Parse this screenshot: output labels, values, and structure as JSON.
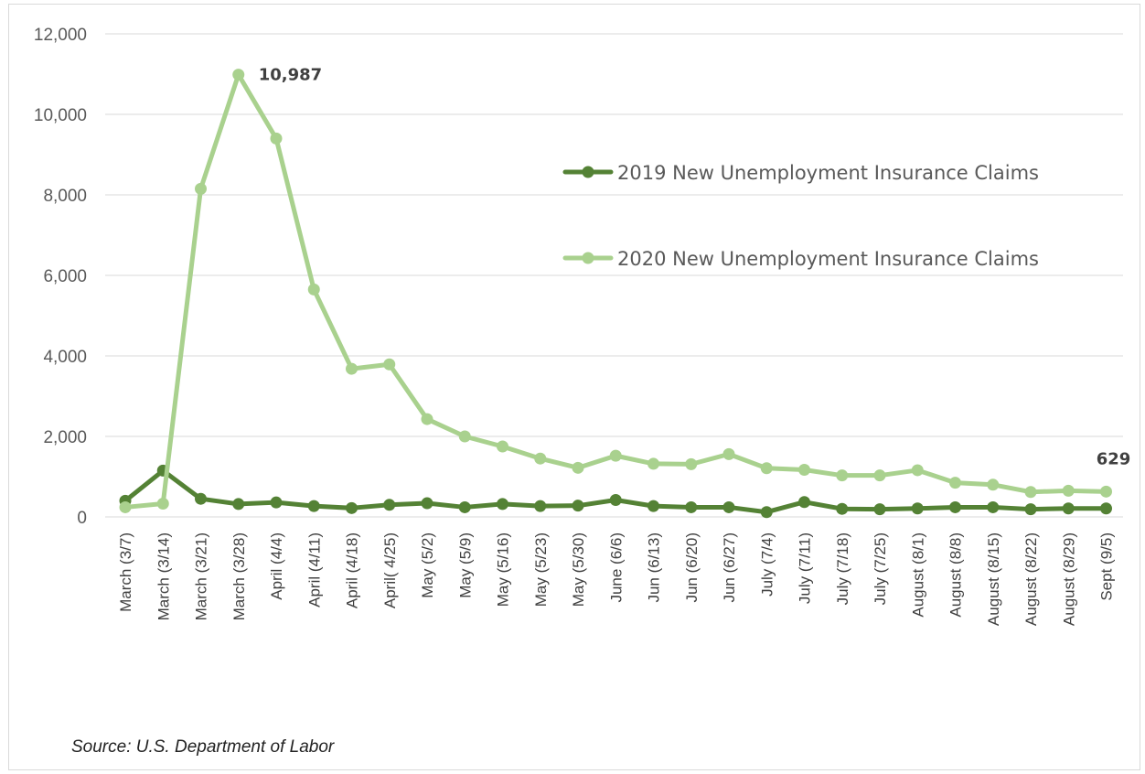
{
  "chart_data": {
    "type": "line",
    "categories": [
      "March  (3/7)",
      "March (3/14)",
      "March (3/21)",
      "March (3/28)",
      "April (4/4)",
      "April (4/11)",
      "April (4/18)",
      "April( 4/25)",
      "May (5/2)",
      "May (5/9)",
      "May (5/16)",
      "May (5/23)",
      "May (5/30)",
      "June (6/6)",
      "Jun (6/13)",
      "Jun (6/20)",
      "Jun (6/27)",
      "July (7/4)",
      "July (7/11)",
      "July (7/18)",
      "July (7/25)",
      "August (8/1)",
      "August (8/8)",
      "August (8/15)",
      "August (8/22)",
      "August (8/29)",
      "Sept (9/5)"
    ],
    "series": [
      {
        "name": "2019 New Unemployment Insurance Claims",
        "color": "#548235",
        "values": [
          400,
          1150,
          450,
          320,
          360,
          270,
          220,
          300,
          340,
          240,
          320,
          270,
          280,
          420,
          270,
          240,
          240,
          120,
          370,
          200,
          190,
          210,
          240,
          240,
          190,
          210,
          210
        ]
      },
      {
        "name": "2020 New Unemployment Insurance Claims",
        "color": "#a9d18e",
        "values": [
          240,
          330,
          8150,
          10987,
          9400,
          5650,
          3680,
          3790,
          2430,
          2000,
          1750,
          1450,
          1220,
          1520,
          1320,
          1310,
          1560,
          1210,
          1170,
          1030,
          1030,
          1160,
          850,
          800,
          620,
          650,
          629
        ]
      }
    ],
    "yticks": [
      "0",
      "2,000",
      "4,000",
      "6,000",
      "8,000",
      "10,000",
      "12,000"
    ],
    "ylim": [
      0,
      12000
    ],
    "grid": true,
    "legend_position": "right",
    "annotations": [
      {
        "series": 1,
        "index": 3,
        "text": "10,987"
      },
      {
        "series": 1,
        "index": 26,
        "text": "629"
      }
    ]
  },
  "source_text": "Source: U.S. Department of Labor"
}
